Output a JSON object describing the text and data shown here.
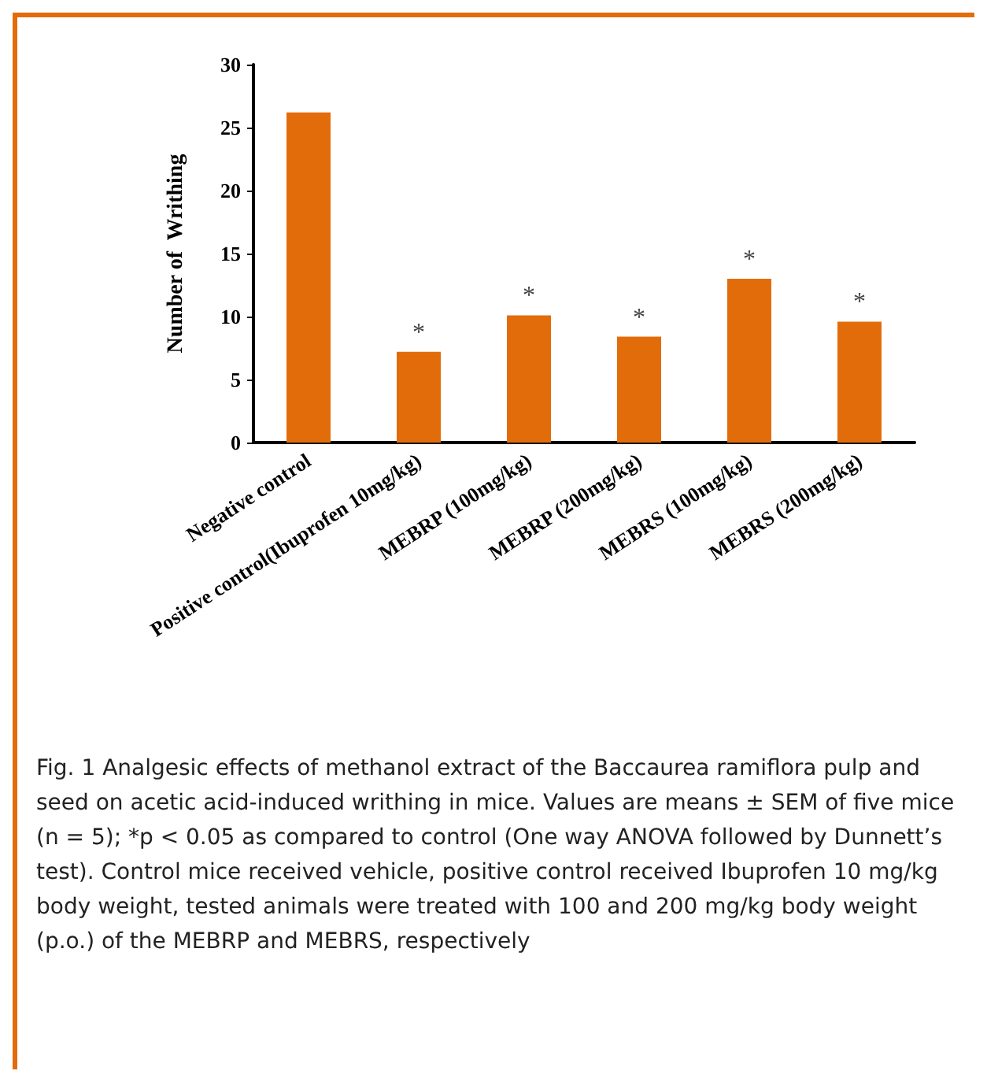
{
  "chart_data": {
    "type": "bar",
    "ylabel": "Number of  Writhing",
    "categories": [
      "Negative control",
      "Positive control(Ibuprofen 10mg/kg)",
      "MEBRP (100mg/kg)",
      "MEBRP (200mg/kg)",
      "MEBRS (100mg/kg)",
      "MEBRS (200mg/kg)"
    ],
    "values": [
      26.2,
      7.2,
      10.1,
      8.4,
      13.0,
      9.6
    ],
    "color": "#e36c0a",
    "ylim": [
      0,
      30
    ],
    "yticks": [
      0,
      5,
      10,
      15,
      20,
      25,
      30
    ],
    "grid": false,
    "annotations": [
      {
        "text": "*",
        "x": "Positive control(Ibuprofen 10mg/kg)",
        "y": 7.2
      },
      {
        "text": "*",
        "x": "MEBRP (100mg/kg)",
        "y": 10.1
      },
      {
        "text": "*",
        "x": "MEBRP (200mg/kg)",
        "y": 8.4
      },
      {
        "text": "*",
        "x": "MEBRS (100mg/kg)",
        "y": 13.0
      },
      {
        "text": "*",
        "x": "MEBRS (200mg/kg)",
        "y": 9.6
      },
      "Fig. 1 Analgesic effects of methanol extract of the Baccaurea ramiflora pulp and seed on acetic acid-induced writhing in mice. Values are means ± SEM of five mice (n = 5); *p < 0.05 as compared to control (One way ANOVA followed by Dunnett’s test). Control mice received vehicle, positive control received Ibuprofen 10 mg/kg body weight, tested animals were treated with 100 and 200 mg/kg body weight (p.o.) of the MEBRP and MEBRS, respectively"
    ]
  }
}
